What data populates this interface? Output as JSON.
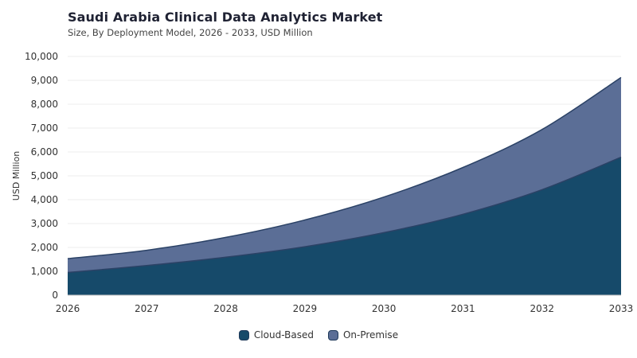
{
  "chart_data": {
    "type": "area",
    "stacked": true,
    "title": "Saudi Arabia Clinical Data Analytics Market",
    "subtitle": "Size, By Deployment Model, 2026 - 2033, USD Million",
    "xlabel": "",
    "ylabel": "USD Million",
    "x": [
      "2026",
      "2027",
      "2028",
      "2029",
      "2030",
      "2031",
      "2032",
      "2033"
    ],
    "ylim": [
      0,
      10000
    ],
    "yticks": [
      "0",
      "1,000",
      "2,000",
      "3,000",
      "4,000",
      "5,000",
      "6,000",
      "7,000",
      "8,000",
      "9,000",
      "10,000"
    ],
    "grid": true,
    "legend_position": "bottom-center",
    "series": [
      {
        "name": "Cloud-Based",
        "values": [
          950,
          1240,
          1590,
          2030,
          2620,
          3390,
          4420,
          5780
        ],
        "color": "#164a6a"
      },
      {
        "name": "On-Premise",
        "values": [
          580,
          640,
          830,
          1120,
          1490,
          1960,
          2520,
          3340
        ],
        "color": "#5b6e96"
      }
    ]
  }
}
